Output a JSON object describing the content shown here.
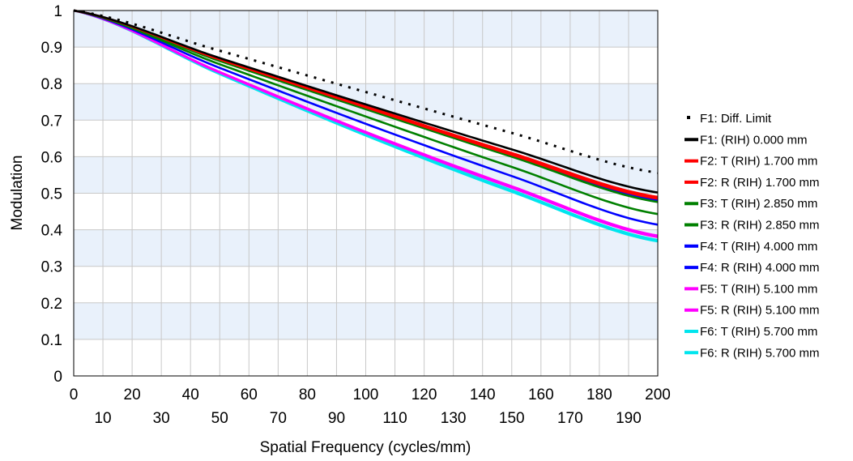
{
  "chart_data": {
    "type": "line",
    "xlabel": "Spatial Frequency (cycles/mm)",
    "ylabel": "Modulation",
    "xlim": [
      0,
      200
    ],
    "ylim": [
      0,
      1
    ],
    "x_ticks_major": [
      "0",
      "20",
      "40",
      "60",
      "80",
      "100",
      "120",
      "140",
      "160",
      "180",
      "200"
    ],
    "x_ticks_minor": [
      "10",
      "30",
      "50",
      "70",
      "90",
      "110",
      "130",
      "150",
      "170",
      "190"
    ],
    "y_ticks": [
      "0",
      "0.1",
      "0.2",
      "0.3",
      "0.4",
      "0.5",
      "0.6",
      "0.7",
      "0.8",
      "0.9",
      "1"
    ],
    "grid": true,
    "legend_position": "right",
    "colors": {
      "band": "#e9f1fb",
      "grid": "#c8c8c8"
    },
    "series": [
      {
        "name": "F1: Diff.  Limit",
        "color": "#000000",
        "dash": "dotted",
        "x": [
          0,
          50,
          100,
          150,
          200
        ],
        "y": [
          1.0,
          0.89,
          0.777,
          0.665,
          0.556
        ]
      },
      {
        "name": "F1: (RIH) 0.000 mm",
        "color": "#000000",
        "dash": "solid",
        "x": [
          0,
          50,
          100,
          150,
          200
        ],
        "y": [
          1.0,
          0.87,
          0.743,
          0.62,
          0.502
        ]
      },
      {
        "name": "F2: T (RIH) 1.700 mm",
        "color": "#ff0000",
        "dash": "solid",
        "x": [
          0,
          50,
          100,
          150,
          200
        ],
        "y": [
          1.0,
          0.866,
          0.735,
          0.605,
          0.485
        ]
      },
      {
        "name": "F2: R (RIH) 1.700 mm",
        "color": "#ff0000",
        "dash": "dashed",
        "x": [
          0,
          50,
          100,
          150,
          200
        ],
        "y": [
          1.0,
          0.868,
          0.738,
          0.61,
          0.49
        ]
      },
      {
        "name": "F3: T (RIH) 2.850 mm",
        "color": "#008000",
        "dash": "solid",
        "x": [
          0,
          50,
          100,
          150,
          200
        ],
        "y": [
          1.0,
          0.853,
          0.71,
          0.572,
          0.443
        ]
      },
      {
        "name": "F3: R (RIH) 2.850 mm",
        "color": "#008000",
        "dash": "dashed",
        "x": [
          0,
          50,
          100,
          150,
          200
        ],
        "y": [
          1.0,
          0.862,
          0.73,
          0.6,
          0.476
        ]
      },
      {
        "name": "F4: T (RIH) 4.000 mm",
        "color": "#0000ff",
        "dash": "solid",
        "x": [
          0,
          50,
          100,
          150,
          200
        ],
        "y": [
          1.0,
          0.843,
          0.69,
          0.547,
          0.414
        ]
      },
      {
        "name": "F4: R (RIH) 4.000 mm",
        "color": "#0000ff",
        "dash": "dashed",
        "x": [
          0,
          50,
          100,
          150,
          200
        ],
        "y": [
          1.0,
          0.864,
          0.733,
          0.603,
          0.48
        ]
      },
      {
        "name": "F5: T (RIH) 5.100 mm",
        "color": "#ff00ff",
        "dash": "solid",
        "x": [
          0,
          50,
          100,
          150,
          200
        ],
        "y": [
          1.0,
          0.832,
          0.668,
          0.519,
          0.384
        ]
      },
      {
        "name": "F5: R (RIH) 5.100 mm",
        "color": "#ff00ff",
        "dash": "dashed",
        "x": [
          0,
          50,
          100,
          150,
          200
        ],
        "y": [
          1.0,
          0.83,
          0.665,
          0.515,
          0.38
        ]
      },
      {
        "name": "F6: T (RIH) 5.700 mm",
        "color": "#00e5ee",
        "dash": "solid",
        "x": [
          0,
          50,
          100,
          150,
          200
        ],
        "y": [
          1.0,
          0.828,
          0.661,
          0.508,
          0.372
        ]
      },
      {
        "name": "F6: R (RIH) 5.700 mm",
        "color": "#00e5ee",
        "dash": "dashed",
        "x": [
          0,
          50,
          100,
          150,
          200
        ],
        "y": [
          1.0,
          0.826,
          0.658,
          0.504,
          0.368
        ]
      }
    ]
  }
}
